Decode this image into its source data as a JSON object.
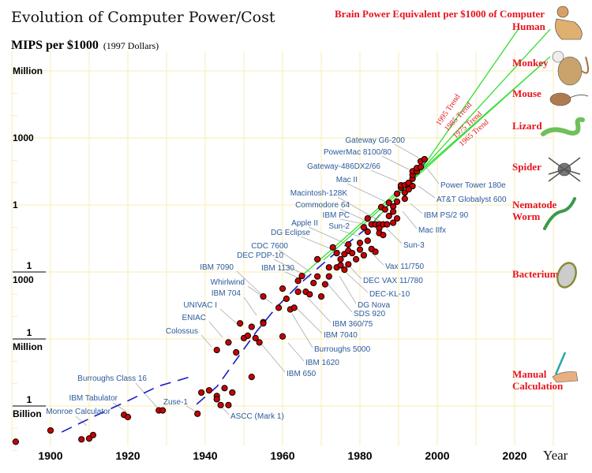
{
  "chart_data": {
    "type": "scatter",
    "title": "Evolution of Computer Power/Cost",
    "ylabel": "MIPS per $1000",
    "ylabel_note": "(1997 Dollars)",
    "xlabel": "Year",
    "yscale": "log",
    "xlim": [
      1890,
      2030
    ],
    "ylim": [
      1e-11,
      10000000.0
    ],
    "grid": true,
    "x_ticks": [
      "1900",
      "1920",
      "1940",
      "1960",
      "1980",
      "2000",
      "2020"
    ],
    "y_ticks": [
      {
        "value": 1000000.0,
        "label": "Million"
      },
      {
        "value": 1000,
        "label": "1000"
      },
      {
        "value": 1,
        "label": "1"
      },
      {
        "value": 0.001,
        "num": "1",
        "den": "1000"
      },
      {
        "value": 1e-06,
        "num": "1",
        "den": "Million"
      },
      {
        "value": 1e-09,
        "num": "1",
        "den": "Billion"
      }
    ],
    "right_axis_title": "Brain Power Equivalent per $1000 of Computer",
    "brain_levels": [
      "Human",
      "Monkey",
      "Mouse",
      "Lizard",
      "Spider",
      "Nematode Worm",
      "Bacterium",
      "Manual Calculation"
    ],
    "points": [
      [
        1891,
        2.5e-11
      ],
      [
        1900,
        8e-11
      ],
      [
        1908,
        3.2e-11
      ],
      [
        1910,
        3.5e-11
      ],
      [
        1911,
        5e-11
      ],
      [
        1919,
        4e-10
      ],
      [
        1920,
        3.2e-10
      ],
      [
        1928,
        6.3e-10
      ],
      [
        1929,
        6.3e-10
      ],
      [
        1938,
        4.5e-10
      ],
      [
        1939,
        4e-09
      ],
      [
        1941,
        5e-09
      ],
      [
        1943,
        2.8e-09
      ],
      [
        1943,
        2e-09
      ],
      [
        1944,
        1.1e-09
      ],
      [
        1945,
        6.3e-09
      ],
      [
        1946,
        1.1e-09
      ],
      [
        1947,
        4e-09
      ],
      [
        1952,
        2e-08
      ],
      [
        1943,
        3.2e-07
      ],
      [
        1946,
        7e-07
      ],
      [
        1948,
        2.5e-07
      ],
      [
        1950,
        1.1e-06
      ],
      [
        1951,
        1.4e-06
      ],
      [
        1953,
        1.1e-06
      ],
      [
        1954,
        7e-07
      ],
      [
        1949,
        5e-06
      ],
      [
        1952,
        3.5e-06
      ],
      [
        1955,
        5.6e-06
      ],
      [
        1955,
        5e-06
      ],
      [
        1960,
        1.3e-06
      ],
      [
        1955,
        8e-05
      ],
      [
        1960,
        0.00018
      ],
      [
        1961,
        6.3e-05
      ],
      [
        1959,
        2.5e-05
      ],
      [
        1962,
        2.1e-05
      ],
      [
        1963,
        2.5e-05
      ],
      [
        1964,
        0.00013
      ],
      [
        1964,
        0.0004
      ],
      [
        1965,
        0.00066
      ],
      [
        1966,
        0.00013
      ],
      [
        1967,
        0.0001
      ],
      [
        1968,
        0.00032
      ],
      [
        1969,
        0.00063
      ],
      [
        1969,
        0.0037
      ],
      [
        1970,
        8e-05
      ],
      [
        1971,
        0.00028
      ],
      [
        1972,
        0.00063
      ],
      [
        1972,
        0.0016
      ],
      [
        1973,
        0.0126
      ],
      [
        1974,
        0.007
      ],
      [
        1974,
        0.0016
      ],
      [
        1975,
        0.0037
      ],
      [
        1975,
        0.002
      ],
      [
        1976,
        0.0063
      ],
      [
        1976,
        0.00126
      ],
      [
        1977,
        0.017
      ],
      [
        1977,
        0.0089
      ],
      [
        1977,
        0.0022
      ],
      [
        1978,
        0.007
      ],
      [
        1979,
        0.0037
      ],
      [
        1980,
        0.02
      ],
      [
        1980,
        0.01
      ],
      [
        1981,
        0.0056
      ],
      [
        1982,
        0.025
      ],
      [
        1983,
        0.0107
      ],
      [
        1984,
        0.008
      ],
      [
        1981,
        0.1
      ],
      [
        1982,
        0.063
      ],
      [
        1983,
        0.135
      ],
      [
        1984,
        0.135
      ],
      [
        1982,
        0.25
      ],
      [
        1985,
        0.135
      ],
      [
        1985,
        0.09
      ],
      [
        1985,
        0.055
      ],
      [
        1986,
        0.135
      ],
      [
        1986,
        0.045
      ],
      [
        1987,
        0.135
      ],
      [
        1985.5,
        0.8
      ],
      [
        1986.5,
        0.63
      ],
      [
        1987.5,
        1.26
      ],
      [
        1987.5,
        0.32
      ],
      [
        1988.6,
        0.85
      ],
      [
        1988.6,
        0.5
      ],
      [
        1988.6,
        0.16
      ],
      [
        1989.6,
        1.4
      ],
      [
        1989.6,
        0.25
      ],
      [
        1989.6,
        3.2
      ],
      [
        1990.6,
        6
      ],
      [
        1991.6,
        3.6
      ],
      [
        1991.6,
        1.9
      ],
      [
        1990.6,
        7.6
      ],
      [
        1991.6,
        7.6
      ],
      [
        1992.6,
        7
      ],
      [
        1992.6,
        9.8
      ],
      [
        1993.6,
        7
      ],
      [
        1992.6,
        5
      ],
      [
        1993.6,
        15
      ],
      [
        1993.6,
        22
      ],
      [
        1993.6,
        32
      ],
      [
        1994.7,
        32
      ],
      [
        1994.7,
        45
      ],
      [
        1995.7,
        50
      ],
      [
        1995.7,
        90
      ],
      [
        1996.7,
        112
      ]
    ],
    "fit_curve": [
      [
        [
          1902.9,
          6.8e-11
        ],
        [
          1911.4,
          3.5e-10
        ],
        [
          1920.6,
          1.9e-09
        ],
        [
          1927.8,
          7.6e-09
        ],
        [
          1936.9,
          2.2e-08
        ]
      ],
      [
        [
          1937.8,
          1.2e-09
        ],
        [
          1943.1,
          7.6e-09
        ],
        [
          1948.2,
          1.3e-07
        ],
        [
          1953.3,
          2.2e-06
        ],
        [
          1958.4,
          2.6e-05
        ],
        [
          1964.5,
          0.0003
        ],
        [
          1972.7,
          0.0051
        ],
        [
          1982.9,
          0.13
        ],
        [
          1997.1,
          87
        ]
      ]
    ],
    "trends": [
      {
        "name": "1995 Trend",
        "from": [
          1993,
          7.6
        ],
        "to": [
          2021.2,
          87000000.0
        ]
      },
      {
        "name": "1985 Trend",
        "from": [
          1982.9,
          0.13
        ],
        "to": [
          2029.2,
          74000000.0
        ]
      },
      {
        "name": "1975 Trend",
        "from": [
          1970.6,
          0.0034
        ],
        "to": [
          2029.2,
          4400000.0
        ]
      },
      {
        "name": "1965 Trend",
        "from": [
          1964.9,
          0.00066
        ],
        "to": [
          2027.3,
          2200000.0
        ]
      }
    ],
    "annotations": [
      "Gateway G6-200",
      "PowerMac 8100/80",
      "Gateway-486DX2/66",
      "Mac II",
      "Macintosh-128K",
      "Commodore 64",
      "IBM PC",
      "Sun-2",
      "Apple II",
      "DG Eclipse",
      "CDC 7600",
      "DEC PDP-10",
      "IBM 1130",
      "IBM 7090",
      "Whirlwind",
      "IBM 704",
      "UNIVAC I",
      "ENIAC",
      "Colossus",
      "Power Tower 180e",
      "AT&T Globalyst 600",
      "IBM PS/2 90",
      "Mac IIfx",
      "Sun-3",
      "Vax 11/750",
      "DEC VAX 11/780",
      "DEC-KL-10",
      "DG Nova",
      "SDS 920",
      "IBM 360/75",
      "IBM 7040",
      "Burroughs 5000",
      "IBM 1620",
      "IBM 650",
      "Burroughs Class 16",
      "IBM Tabulator",
      "Monroe Calculator",
      "Zuse-1",
      "ASCC (Mark 1)"
    ],
    "colors": {
      "point": "#cc0000",
      "trend": "#33dd33",
      "curve": "#1a1acc",
      "grid": "#f7eeb0",
      "label": "#2b5a9a",
      "brain": "#e8131e"
    }
  }
}
